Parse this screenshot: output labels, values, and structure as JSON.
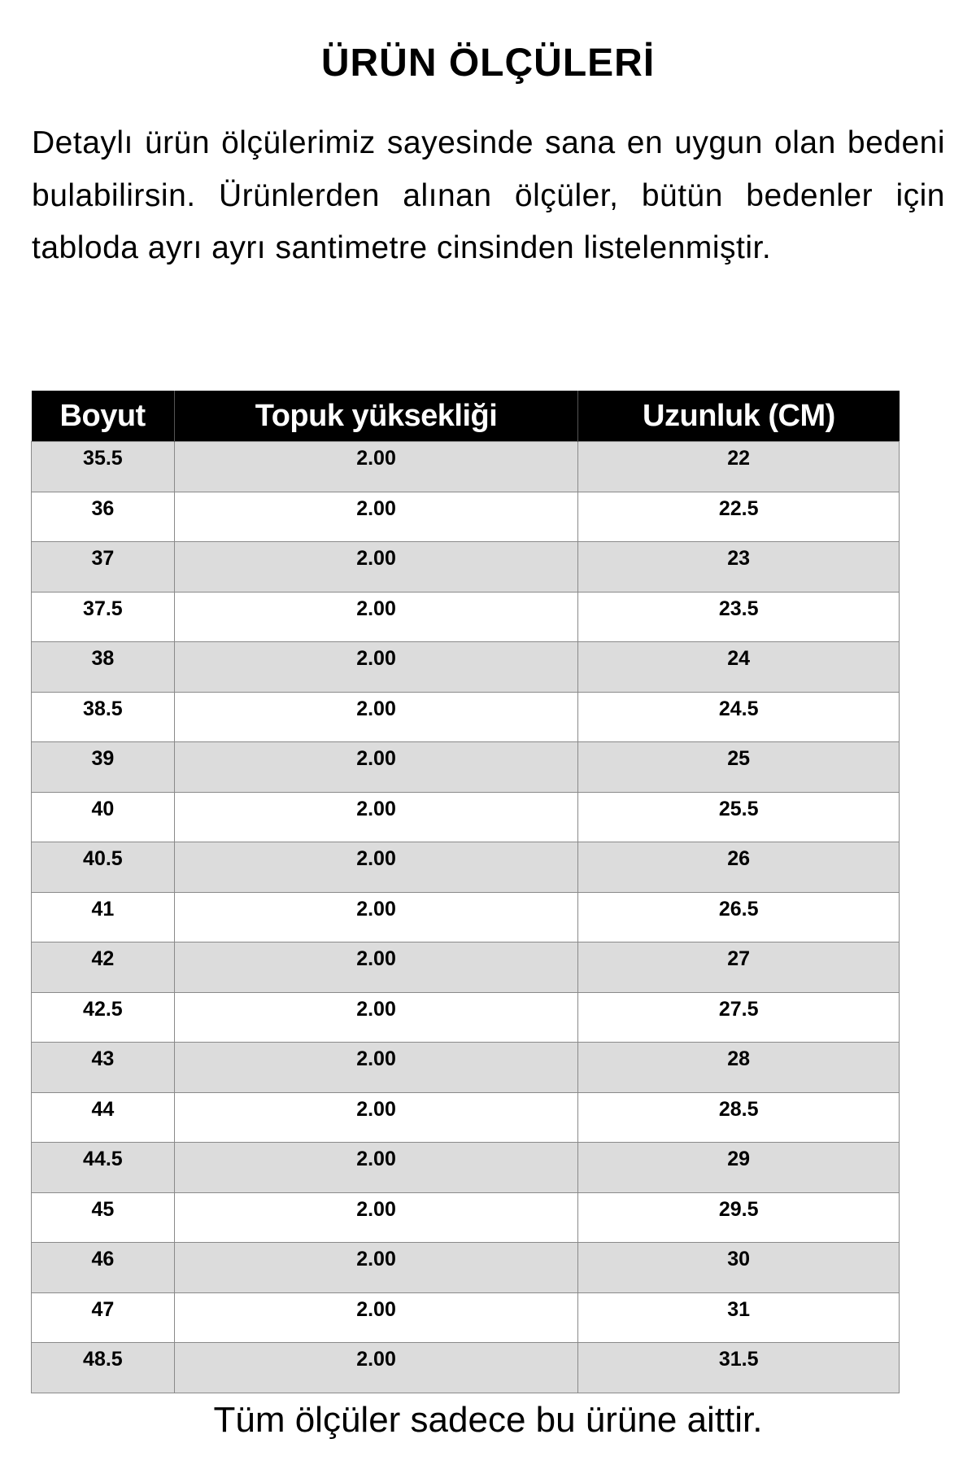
{
  "title": "ÜRÜN ÖLÇÜLERİ",
  "intro": "Detaylı ürün ölçülerimiz sayesinde sana en uygun olan bedeni bulabilirsin. Ürünlerden alınan ölçüler, bütün bedenler için tabloda ayrı ayrı santimetre cinsinden listelenmiştir.",
  "table": {
    "headers": [
      "Boyut",
      "Topuk yüksekliği",
      "Uzunluk (CM)"
    ],
    "rows": [
      [
        "35.5",
        "2.00",
        "22"
      ],
      [
        "36",
        "2.00",
        "22.5"
      ],
      [
        "37",
        "2.00",
        "23"
      ],
      [
        "37.5",
        "2.00",
        "23.5"
      ],
      [
        "38",
        "2.00",
        "24"
      ],
      [
        "38.5",
        "2.00",
        "24.5"
      ],
      [
        "39",
        "2.00",
        "25"
      ],
      [
        "40",
        "2.00",
        "25.5"
      ],
      [
        "40.5",
        "2.00",
        "26"
      ],
      [
        "41",
        "2.00",
        "26.5"
      ],
      [
        "42",
        "2.00",
        "27"
      ],
      [
        "42.5",
        "2.00",
        "27.5"
      ],
      [
        "43",
        "2.00",
        "28"
      ],
      [
        "44",
        "2.00",
        "28.5"
      ],
      [
        "44.5",
        "2.00",
        "29"
      ],
      [
        "45",
        "2.00",
        "29.5"
      ],
      [
        "46",
        "2.00",
        "30"
      ],
      [
        "47",
        "2.00",
        "31"
      ],
      [
        "48.5",
        "2.00",
        "31.5"
      ]
    ]
  },
  "footer": "Tüm ölçüler sadece bu ürüne aittir.",
  "colors": {
    "header_bg": "#000000",
    "stripe": "#dcdcdc"
  }
}
